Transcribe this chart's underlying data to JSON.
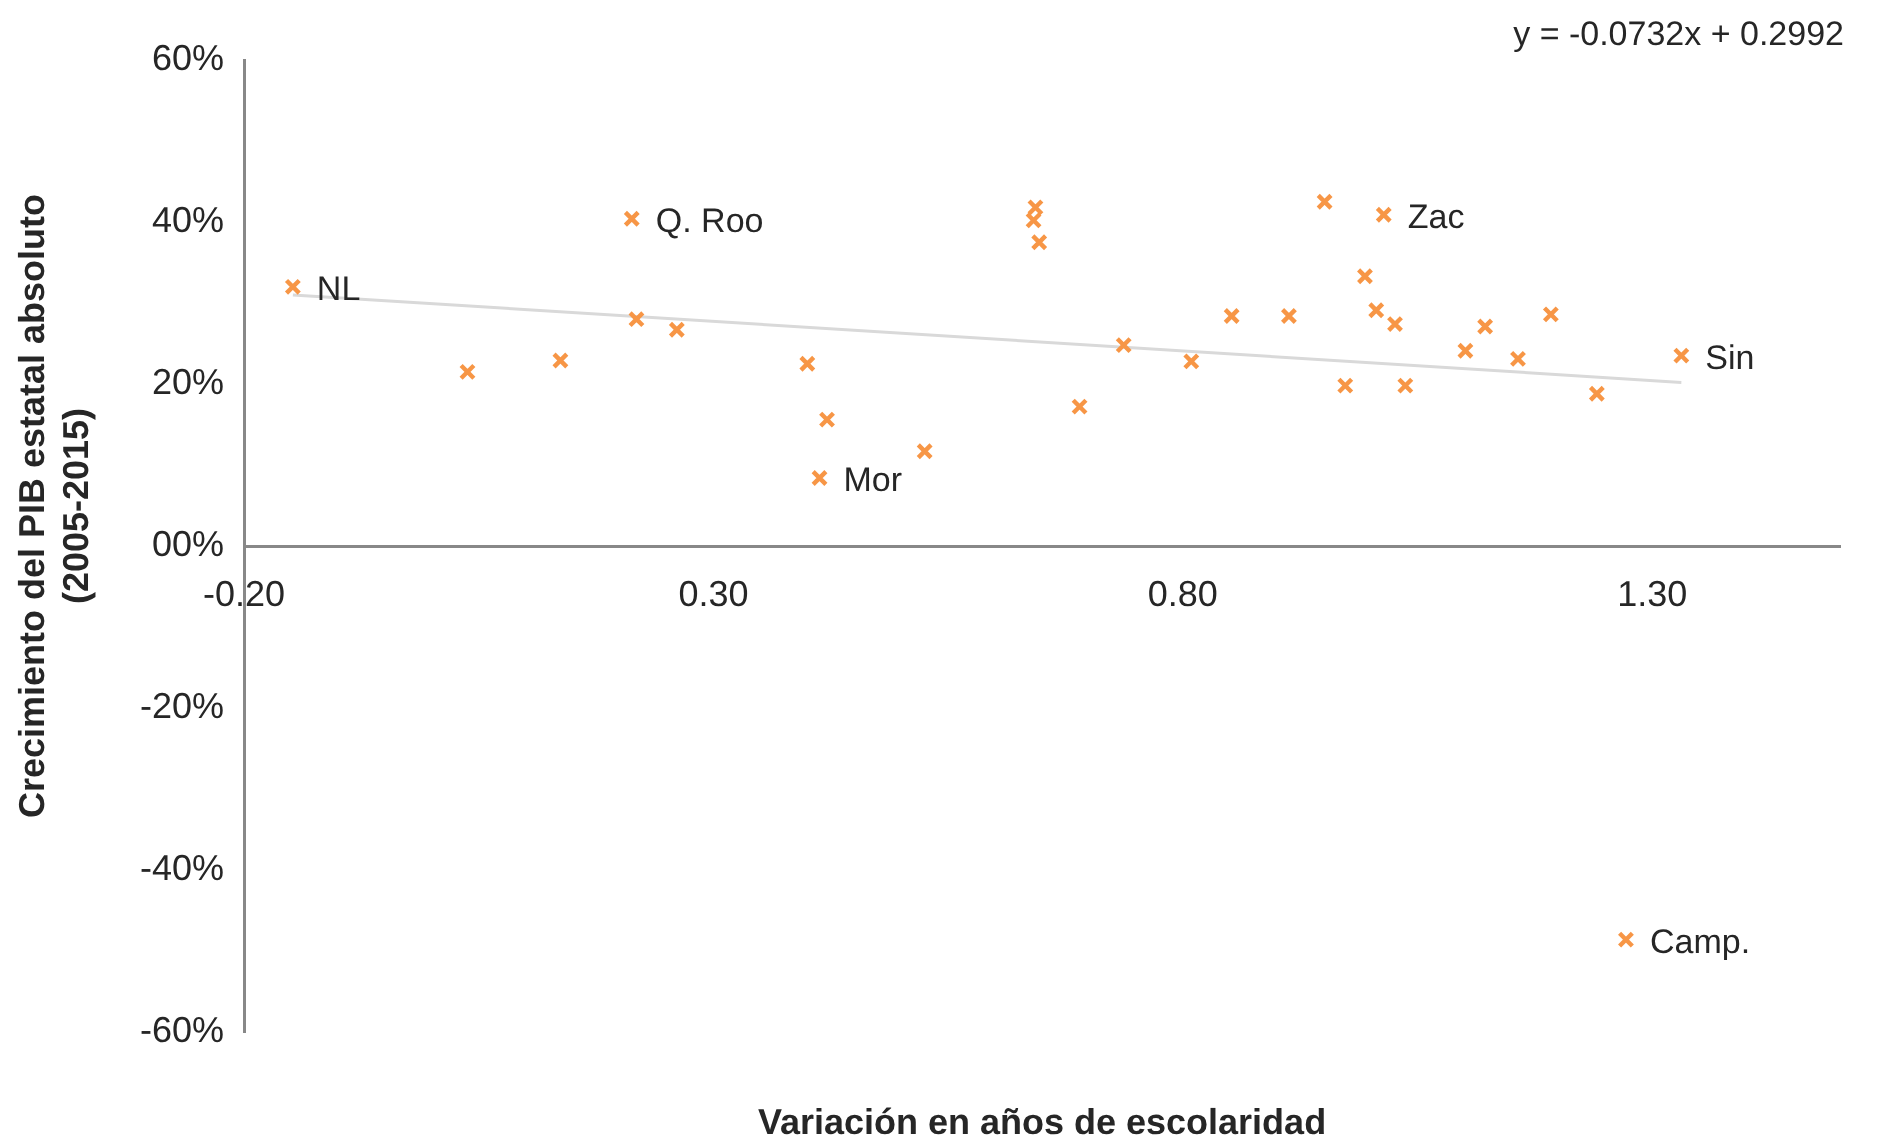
{
  "chart_data": {
    "type": "scatter",
    "xlabel": "Variación en años de escolaridad",
    "ylabel": "Crecimiento del PIB estatal absoluto (2005-2015)",
    "xlim": [
      -0.2,
      1.5
    ],
    "xticks": [
      {
        "value": -0.2,
        "label": "-0.20"
      },
      {
        "value": 0.3,
        "label": "0.30"
      },
      {
        "value": 0.8,
        "label": "0.80"
      },
      {
        "value": 1.3,
        "label": "1.30"
      }
    ],
    "ylim": [
      -60,
      60
    ],
    "yticks": [
      {
        "value": -60,
        "label": "-60%"
      },
      {
        "value": -40,
        "label": "-40%"
      },
      {
        "value": -20,
        "label": "-20%"
      },
      {
        "value": 0,
        "label": "00%"
      },
      {
        "value": 20,
        "label": "20%"
      },
      {
        "value": 40,
        "label": "40%"
      },
      {
        "value": 60,
        "label": "60%"
      }
    ],
    "grid": false,
    "legend": false,
    "marker": "cross",
    "series": [
      {
        "color": "#f79646",
        "x": [
          -0.148,
          0.038,
          0.137,
          0.213,
          0.218,
          0.261,
          0.4,
          0.421,
          0.413,
          0.525,
          0.643,
          0.641,
          0.647,
          0.69,
          0.737,
          0.809,
          0.852,
          0.913,
          0.951,
          0.973,
          0.994,
          1.006,
          1.014,
          1.026,
          1.037,
          1.101,
          1.122,
          1.157,
          1.192,
          1.241,
          1.331,
          1.272
        ],
        "values": [
          32.0,
          21.5,
          22.9,
          40.4,
          28.0,
          26.7,
          22.5,
          15.6,
          8.4,
          11.7,
          41.8,
          40.2,
          37.5,
          17.2,
          24.8,
          22.8,
          28.4,
          28.4,
          42.5,
          19.8,
          33.3,
          29.1,
          40.9,
          27.4,
          19.8,
          24.1,
          27.1,
          23.1,
          28.6,
          18.8,
          23.5,
          -48.6
        ]
      },
      {
        "type": "line",
        "color": "#d9d9d9",
        "marker": "none",
        "x": [
          -0.148,
          1.331
        ],
        "values": [
          31.0,
          20.2
        ]
      }
    ],
    "annotations": [
      {
        "text": "NL",
        "x": -0.148,
        "y": 32.0
      },
      {
        "text": "Q. Roo",
        "x": 0.213,
        "y": 40.4
      },
      {
        "text": "Mor",
        "x": 0.413,
        "y": 8.4
      },
      {
        "text": "Zac",
        "x": 1.014,
        "y": 40.9
      },
      {
        "text": "Sin",
        "x": 1.331,
        "y": 23.5
      },
      {
        "text": "Camp.",
        "x": 1.272,
        "y": -48.6
      },
      "y = -0.0732x + 0.2992"
    ]
  }
}
